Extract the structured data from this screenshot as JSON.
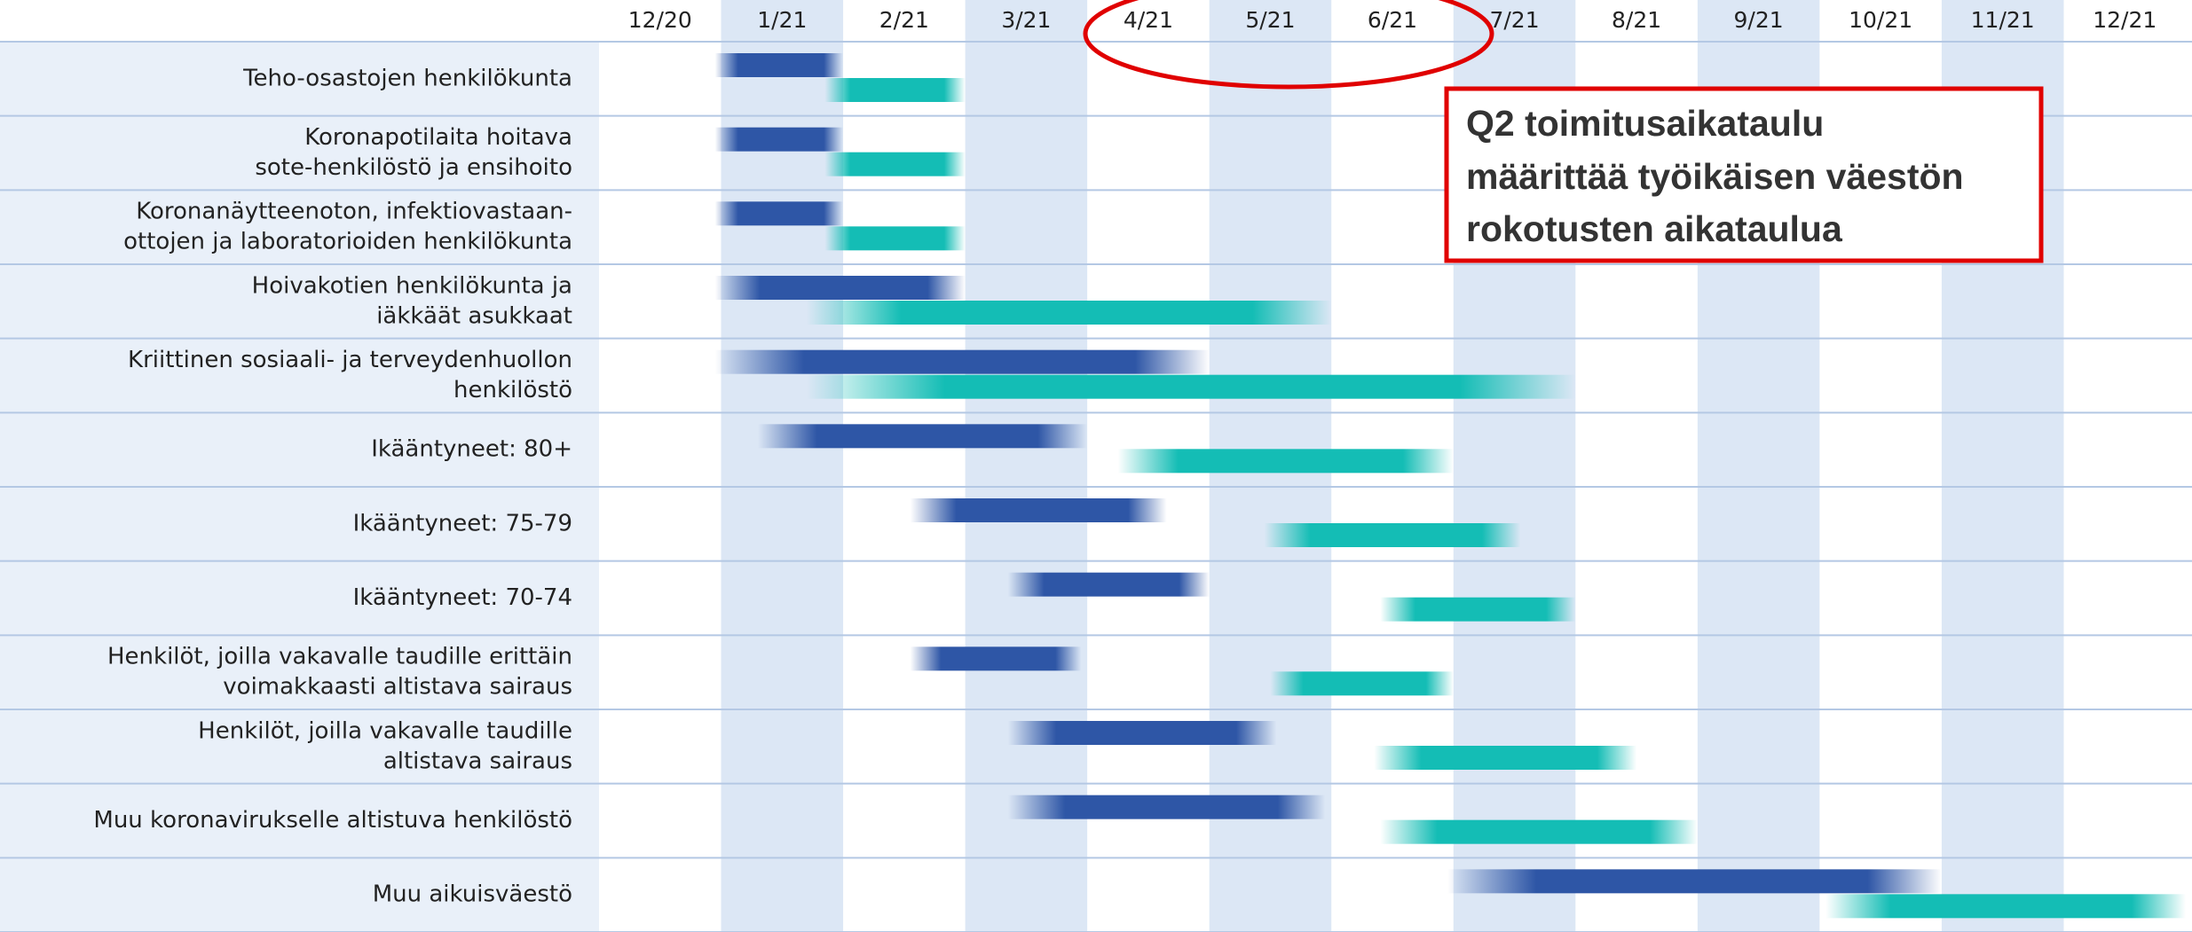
{
  "chart_data": {
    "type": "gantt",
    "categories": [
      [
        "Teho-osastojen henkilökunta"
      ],
      [
        "Koronapotilaita hoitava",
        "sote-henkilöstö ja ensihoito"
      ],
      [
        "Koronanäytteenoton, infektiovastaan-",
        "ottojen ja laboratorioiden henkilökunta"
      ],
      [
        "Hoivakotien henkilökunta ja",
        "iäkkäät asukkaat"
      ],
      [
        "Kriittinen sosiaali- ja terveydenhuollon",
        "henkilöstö"
      ],
      [
        "Ikääntyneet: 80+"
      ],
      [
        "Ikääntyneet: 75-79"
      ],
      [
        "Ikääntyneet: 70-74"
      ],
      [
        "Henkilöt, joilla vakavalle taudille erittäin",
        "voimakkaasti altistava sairaus"
      ],
      [
        "Henkilöt, joilla vakavalle taudille",
        "altistava sairaus"
      ],
      [
        "Muu koronavirukselle altistuva henkilöstö"
      ],
      [
        "Muu aikuisväestö"
      ]
    ],
    "months": [
      "12/20",
      "1/21",
      "2/21",
      "3/21",
      "4/21",
      "5/21",
      "6/21",
      "7/21",
      "8/21",
      "9/21",
      "10/21",
      "11/21",
      "12/21"
    ],
    "xlim": [
      0,
      13
    ],
    "series": [
      {
        "color": "#2e56a6",
        "start": [
          0.95,
          0.95,
          0.95,
          0.95,
          0.95,
          1.3,
          2.55,
          3.35,
          2.55,
          3.35,
          3.35,
          6.95
        ],
        "end": [
          2.0,
          2.0,
          2.0,
          3.0,
          5.0,
          4.0,
          4.65,
          5.0,
          3.95,
          5.55,
          5.95,
          11.0
        ]
      },
      {
        "color": "#14bdb5",
        "start": [
          1.85,
          1.85,
          1.85,
          1.7,
          1.7,
          4.25,
          5.45,
          6.4,
          5.5,
          6.35,
          6.4,
          10.05
        ],
        "end": [
          3.0,
          3.0,
          3.0,
          6.0,
          8.0,
          7.0,
          7.55,
          8.0,
          7.0,
          8.5,
          9.0,
          13.0
        ]
      }
    ],
    "annotation": [
      "Q2 toimitusaikataulu",
      "määrittää työikäisen väestön",
      "rokotusten aikataulua"
    ]
  }
}
